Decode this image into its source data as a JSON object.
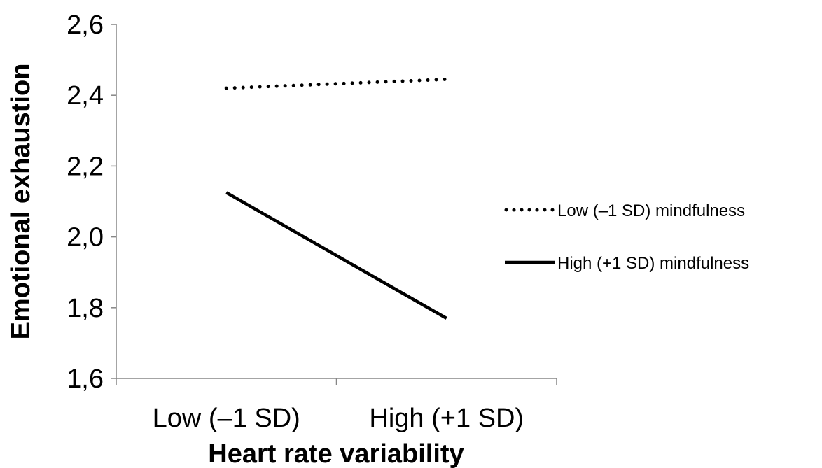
{
  "chart_data": {
    "type": "line",
    "categories": [
      "Low (–1 SD)",
      "High (+1 SD)"
    ],
    "series": [
      {
        "name": "Low (–1 SD) mindfulness",
        "values": [
          2.42,
          2.445
        ],
        "style": "dotted",
        "color": "#000000"
      },
      {
        "name": "High (+1 SD) mindfulness",
        "values": [
          2.125,
          1.77
        ],
        "style": "solid",
        "color": "#000000"
      }
    ],
    "xlabel": "Heart rate variability",
    "ylabel": "Emotional exhaustion",
    "ylim": [
      1.6,
      2.6
    ],
    "yticks": [
      "1,6",
      "1,8",
      "2,0",
      "2,2",
      "2,4",
      "2,6"
    ],
    "grid": false,
    "legend_position": "right"
  }
}
